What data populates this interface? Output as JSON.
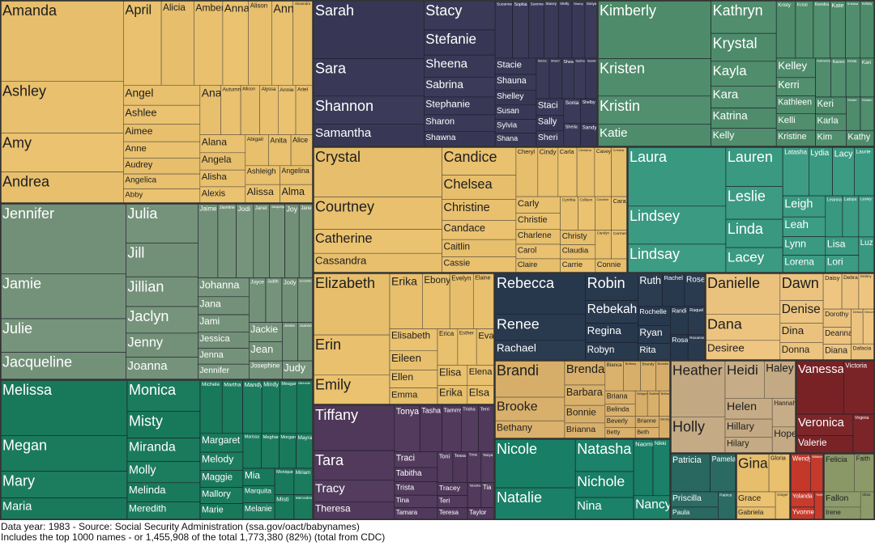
{
  "chart_data": {
    "type": "treemap",
    "footer": {
      "line1": "Data year: 1983 - Source: Social Security Administration (ssa.gov/oact/babynames)",
      "line2": "Includes the top 1000 names - or 1,455,908 of the total 1,773,380 (82%) (total from CDC)"
    },
    "groups": [
      {
        "color": "#e8c06e",
        "labels": [
          "Amanda",
          "Ashley",
          "Amy",
          "Andrea",
          "April",
          "Alicia",
          "Amber",
          "Anna",
          "Alison",
          "Ann",
          "Alexandra",
          "Angel",
          "Ashlee",
          "Aimee",
          "Anne",
          "Audrey",
          "Angelica",
          "Abby",
          "Ana",
          "Autumn",
          "Allison",
          "Alyssa",
          "Annie",
          "Ariel",
          "Alana",
          "Angela",
          "Alisha",
          "Alexis",
          "Abigail",
          "Anita",
          "Alice",
          "Ashleigh",
          "Alissa",
          "Angelina",
          "Alma"
        ]
      },
      {
        "color": "#393957",
        "labels": [
          "Sarah",
          "Sara",
          "Shannon",
          "Samantha",
          "Stacy",
          "Stefanie",
          "Sheena",
          "Sabrina",
          "Stephanie",
          "Sharon",
          "Shawna",
          "Suzanne",
          "Sophia",
          "Summer",
          "Stacey",
          "Shelly",
          "Sherry",
          "Sonya",
          "Stacie",
          "Shauna",
          "Shelley",
          "Susan",
          "Sylvia",
          "Shana",
          "Sierra",
          "Sherri",
          "Shea",
          "Sasha",
          "Sandra",
          "Staci",
          "Sally",
          "Sheri",
          "Sonia",
          "Shelby",
          "Sheila",
          "Sandy"
        ]
      },
      {
        "color": "#4f8d6c",
        "labels": [
          "Kimberly",
          "Kristen",
          "Kristin",
          "Katie",
          "Kathryn",
          "Krystal",
          "Kayla",
          "Kara",
          "Katrina",
          "Kelly",
          "Kristy",
          "Kristi",
          "Kendra",
          "Kate",
          "Kristina",
          "Kelsey",
          "Kelley",
          "Kerri",
          "Kathleen",
          "Kelli",
          "Kristine",
          "Katherine",
          "Karen",
          "Krista",
          "Kari",
          "Keri",
          "Karla",
          "Kim",
          "Kristie",
          "Kirsten",
          "Kathy"
        ]
      },
      {
        "color": "#74927a",
        "labels": [
          "Jennifer",
          "Jamie",
          "Julie",
          "Jacqueline",
          "Julia",
          "Jill",
          "Jillian",
          "Jaclyn",
          "Jenny",
          "Joanna",
          "Jaime",
          "Jasmine",
          "Jodi",
          "Janet",
          "Jacquelyn",
          "Joy",
          "Jane",
          "Johanna",
          "Jana",
          "Jami",
          "Jessica",
          "Jenna",
          "Jennifer",
          "Joyce",
          "Judith",
          "Jody",
          "Jeanette",
          "Jackie",
          "Jean",
          "Josephine",
          "Jessie",
          "Joanne",
          "Judy"
        ]
      },
      {
        "color": "#e8c06e",
        "labels": [
          "Crystal",
          "Courtney",
          "Catherine",
          "Cassandra",
          "Candice",
          "Chelsea",
          "Christine",
          "Candace",
          "Caitlin",
          "Cassie",
          "Cheryl",
          "Cindy",
          "Carla",
          "Christina",
          "Casey",
          "Cristina",
          "Carly",
          "Christie",
          "Charlene",
          "Carol",
          "Claire",
          "Cynthia",
          "Colleen",
          "Caroline",
          "Cara",
          "Christy",
          "Claudia",
          "Carrie",
          "Carolyn",
          "Carmen",
          "Connie"
        ]
      },
      {
        "color": "#3a9a82",
        "labels": [
          "Laura",
          "Lindsey",
          "Lindsay",
          "Lauren",
          "Leslie",
          "Linda",
          "Lacey",
          "Latasha",
          "Lydia",
          "Lacy",
          "Laurie",
          "Leigh",
          "Leah",
          "Lynn",
          "Lorena",
          "Leanna",
          "Latoya",
          "Lesley",
          "Lisa",
          "Lori",
          "Luz"
        ]
      },
      {
        "color": "#1a7a5c",
        "labels": [
          "Melissa",
          "Megan",
          "Mary",
          "Maria",
          "Monica",
          "Misty",
          "Miranda",
          "Molly",
          "Melinda",
          "Meredith",
          "Michele",
          "Martha",
          "Mandy",
          "Mindy",
          "Meagan",
          "Michelle",
          "Margaret",
          "Melody",
          "Maggie",
          "Mallory",
          "Marie",
          "Marissa",
          "Meghan",
          "Morgan",
          "Mayra",
          "Mia",
          "Marquita",
          "Melanie",
          "Monique",
          "Miriam",
          "Misti",
          "Mercedes"
        ]
      },
      {
        "color": "#e8c06e",
        "labels": [
          "Elizabeth",
          "Erin",
          "Emily",
          "Erika",
          "Ebony",
          "Evelyn",
          "Elaine",
          "Elisabeth",
          "Eileen",
          "Ellen",
          "Emma",
          "Erica",
          "Esther",
          "Eva",
          "Elisa",
          "Erika",
          "Elena",
          "Elsa"
        ]
      },
      {
        "color": "#293a4f",
        "labels": [
          "Rebecca",
          "Renee",
          "Rachael",
          "Robin",
          "Rebekah",
          "Regina",
          "Robyn",
          "Ruth",
          "Rachel",
          "Rose",
          "Rochelle",
          "Ryan",
          "Rita",
          "Randi",
          "Raquel",
          "Rosa",
          "Roxanne"
        ]
      },
      {
        "color": "#ecc480",
        "labels": [
          "Danielle",
          "Dana",
          "Desiree",
          "Dawn",
          "Denise",
          "Dina",
          "Donna",
          "Daisy",
          "Debra",
          "Destiny",
          "Dorothy",
          "Deanna",
          "Diana",
          "Deborah",
          "Devon",
          "Dafacia"
        ]
      },
      {
        "color": "#d9b06b",
        "labels": [
          "Brandi",
          "Brooke",
          "Bethany",
          "Brenda",
          "Barbara",
          "Bonnie",
          "Brianna",
          "Blanca",
          "Brittney",
          "Brandy",
          "Brandie",
          "Briana",
          "Belinda",
          "Beverly",
          "Betty",
          "Bridget",
          "Bobbie",
          "Brittany",
          "Brianne",
          "Beth",
          "Becky"
        ]
      },
      {
        "color": "#513a5c",
        "labels": [
          "Tiffany",
          "Tara",
          "Tracy",
          "Theresa",
          "Tonya",
          "Tasha",
          "Tammy",
          "Trisha",
          "Terri",
          "Traci",
          "Tabitha",
          "Trista",
          "Tina",
          "Tamara",
          "Toni",
          "Tessa",
          "Tricia",
          "Tanya",
          "Tracey",
          "Teri",
          "Teresa",
          "Tabatha",
          "Tia",
          "Taylor"
        ]
      },
      {
        "color": "#1a8068",
        "labels": [
          "Nicole",
          "Natalie",
          "Natasha",
          "Nichole",
          "Nina",
          "Naomi",
          "Nikki",
          "Nancy"
        ]
      },
      {
        "color": "#c5ab85",
        "labels": [
          "Heather",
          "Holly",
          "Heidi",
          "Haley",
          "Helen",
          "Hillary",
          "Hilary",
          "Hannah",
          "Hope"
        ]
      },
      {
        "color": "#7a2428",
        "labels": [
          "Vanessa",
          "Victoria",
          "Veronica",
          "Valerie",
          "Virginia"
        ]
      },
      {
        "color": "#2a6a62",
        "labels": [
          "Patricia",
          "Pamela",
          "Priscilla",
          "Paula",
          "Patrice"
        ]
      },
      {
        "color": "#e8c06e",
        "labels": [
          "Gina",
          "Gloria",
          "Grace",
          "Gabriela",
          "Ginger"
        ]
      },
      {
        "color": "#c63a2b",
        "labels": [
          "Wendy",
          "Whitney",
          "Yolanda",
          "Yvonne",
          "Yvette"
        ]
      },
      {
        "color": "#8c9a6a",
        "labels": [
          "Felicia",
          "Faith",
          "Fallon",
          "Irene",
          "Olivia"
        ]
      }
    ]
  }
}
